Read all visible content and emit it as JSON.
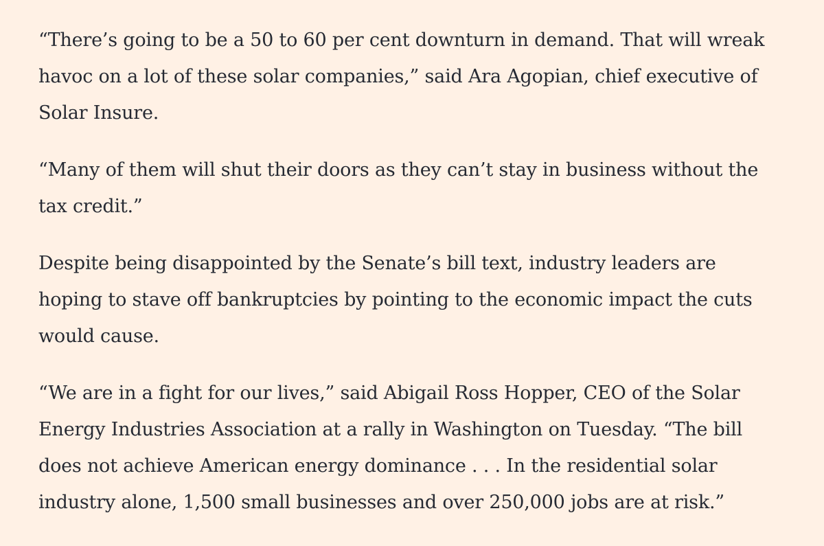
{
  "paragraphs": [
    "“There’s going to be a 50 to 60 per cent downturn in demand. That will wreak havoc on a lot of these solar companies,” said Ara Agopian, chief executive of Solar Insure.",
    "“Many of them will shut their doors as they can’t stay in business without the tax credit.”",
    "Despite being disappointed by the Senate’s bill text, industry leaders are hoping to stave off bankruptcies by pointing to the economic impact the cuts would cause.",
    "“We are in a fight for our lives,” said Abigail Ross Hopper, CEO of the Solar Energy Industries Association at a rally in Washington on Tuesday. “The bill does not achieve American energy dominance . . . In the residential solar industry alone, 1,500 small businesses and over 250,000 jobs are at risk.”"
  ],
  "colors": {
    "background": "#fff1e5",
    "text": "#262a33"
  }
}
